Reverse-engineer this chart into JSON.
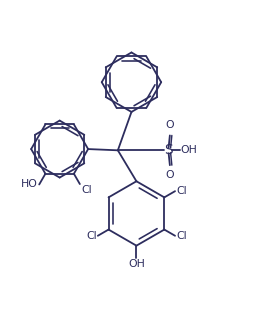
{
  "background": "#ffffff",
  "line_color": "#2d2d5e",
  "line_width": 1.3,
  "font_size": 7.8,
  "figsize": [
    2.58,
    3.13
  ],
  "dpi": 100,
  "xlim": [
    0.0,
    1.0
  ],
  "ylim": [
    0.0,
    1.0
  ]
}
